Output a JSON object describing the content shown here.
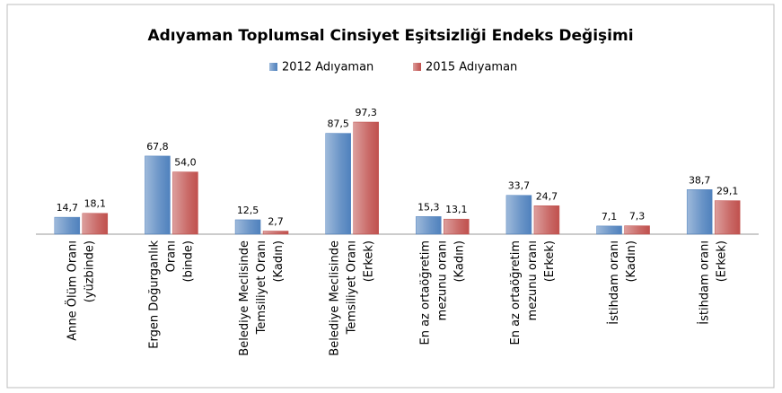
{
  "chart_data": {
    "type": "bar",
    "title": "Adıyaman Toplumsal Cinsiyet Eşitsizliği Endeks Değişimi",
    "categories": [
      [
        "Anne Ölüm Oranı",
        "(yüzbinde)"
      ],
      [
        "Ergen Doğurganlık",
        "Oranı",
        "(binde)"
      ],
      [
        "Belediye Meclisinde",
        "Temsiliyet Oranı",
        "(Kadın)"
      ],
      [
        "Belediye Meclisinde",
        "Temsiliyet Oranı",
        "(Erkek)"
      ],
      [
        "En az ortaöğretim",
        "mezunu oranı",
        "(Kadın)"
      ],
      [
        "En az ortaöğretim",
        "mezunu oranı",
        "(Erkek)"
      ],
      [
        "İstihdam oranı",
        "(Kadın)"
      ],
      [
        "İstihdam oranı",
        "(Erkek)"
      ]
    ],
    "series": [
      {
        "name": "2012 Adıyaman",
        "color": "#4f81bd",
        "values": [
          14.7,
          67.8,
          12.5,
          87.5,
          15.3,
          33.7,
          7.1,
          38.7
        ],
        "value_labels": [
          "14,7",
          "67,8",
          "12,5",
          "87,5",
          "15,3",
          "33,7",
          "7,1",
          "38,7"
        ]
      },
      {
        "name": "2015 Adıyaman",
        "color": "#c0504d",
        "values": [
          18.1,
          54.0,
          2.7,
          97.3,
          13.1,
          24.7,
          7.3,
          29.1
        ],
        "value_labels": [
          "18,1",
          "54,0",
          "2,7",
          "97,3",
          "13,1",
          "24,7",
          "7,3",
          "29,1"
        ]
      }
    ],
    "legend": "top"
  }
}
